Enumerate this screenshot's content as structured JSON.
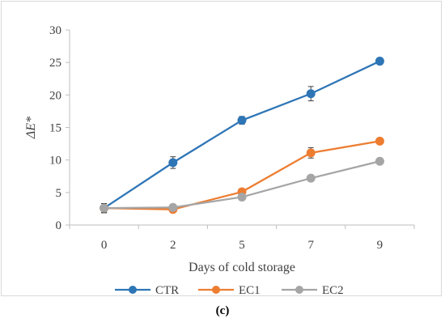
{
  "chart_data": {
    "type": "line",
    "categories": [
      "0",
      "2",
      "5",
      "7",
      "9"
    ],
    "xlabel": "Days of cold storage",
    "ylabel": "ΔE*",
    "ylim": [
      0,
      30
    ],
    "yticks": [
      0,
      5,
      10,
      15,
      20,
      25,
      30
    ],
    "grid": false,
    "legend_position": "bottom",
    "series": [
      {
        "name": "CTR",
        "color": "#2E75B6",
        "values": [
          2.6,
          9.6,
          16.1,
          20.2,
          25.2
        ],
        "errors": [
          0.7,
          0.9,
          0.6,
          1.1,
          0.5
        ]
      },
      {
        "name": "EC1",
        "color": "#ED7D31",
        "values": [
          2.6,
          2.4,
          5.1,
          11.1,
          12.9
        ],
        "errors": [
          0.7,
          0.3,
          0.5,
          0.8,
          0.4
        ]
      },
      {
        "name": "EC2",
        "color": "#A5A5A5",
        "values": [
          2.6,
          2.7,
          4.3,
          7.2,
          9.8
        ],
        "errors": [
          0.7,
          0.3,
          0.5,
          0.3,
          0.4
        ]
      }
    ]
  },
  "caption": "(c)"
}
